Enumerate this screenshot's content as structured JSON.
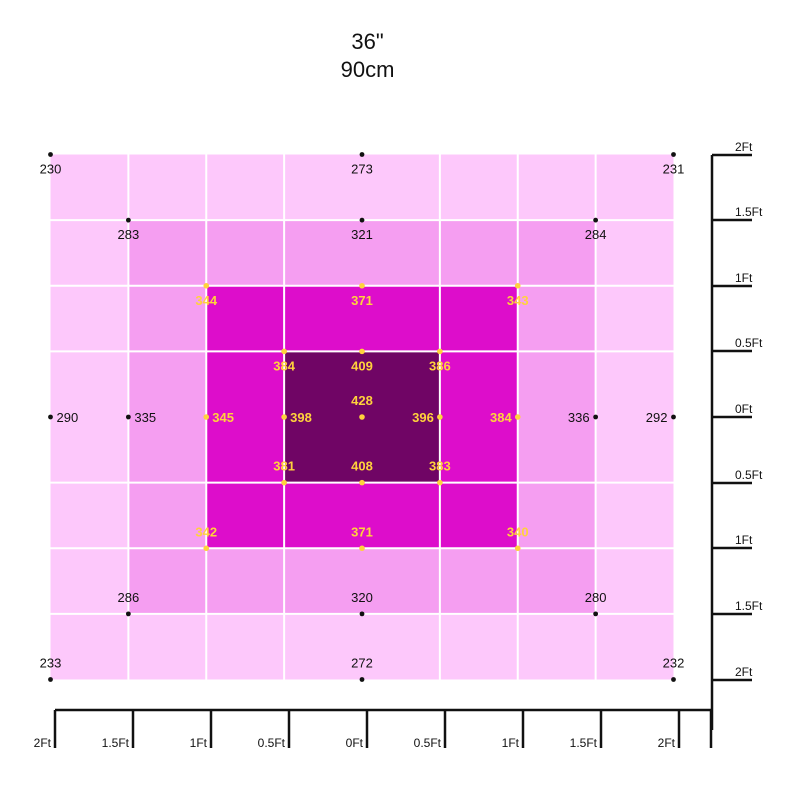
{
  "title": {
    "line1": "36\"",
    "line2": "90cm"
  },
  "chart_data": {
    "type": "heatmap",
    "title": "36\" 90cm",
    "x_ticks": [
      "2Ft",
      "1.5Ft",
      "1Ft",
      "0.5Ft",
      "0Ft",
      "0.5Ft",
      "1Ft",
      "1.5Ft",
      "2Ft"
    ],
    "y_ticks": [
      "2Ft",
      "1.5Ft",
      "1Ft",
      "0.5Ft",
      "0Ft",
      "0.5Ft",
      "1Ft",
      "1.5Ft",
      "2Ft"
    ],
    "xlim": [
      -2,
      2
    ],
    "ylim": [
      -2,
      2
    ],
    "zones": [
      {
        "name": "outer",
        "half_width_ft": 2,
        "half_height_ft": 2,
        "color": "#fdc8fb"
      },
      {
        "name": "ring-1.5",
        "half_width_ft": 1.5,
        "half_height_ft": 1.5,
        "color": "#f59ef1"
      },
      {
        "name": "ring-1",
        "half_width_ft": 1,
        "half_height_ft": 1,
        "color": "#dd0dcb"
      },
      {
        "name": "core",
        "half_width_ft": 0.5,
        "half_height_ft": 0.5,
        "color": "#700565"
      }
    ],
    "points": [
      {
        "x": -2,
        "y": 2,
        "value": 230,
        "style": "dark",
        "label_pos": "below"
      },
      {
        "x": 0,
        "y": 2,
        "value": 273,
        "style": "dark",
        "label_pos": "below"
      },
      {
        "x": 2,
        "y": 2,
        "value": 231,
        "style": "dark",
        "label_pos": "below"
      },
      {
        "x": -1.5,
        "y": 1.5,
        "value": 283,
        "style": "dark",
        "label_pos": "below"
      },
      {
        "x": 0,
        "y": 1.5,
        "value": 321,
        "style": "dark",
        "label_pos": "below"
      },
      {
        "x": 1.5,
        "y": 1.5,
        "value": 284,
        "style": "dark",
        "label_pos": "below"
      },
      {
        "x": -1,
        "y": 1,
        "value": 344,
        "style": "yellow",
        "label_pos": "below"
      },
      {
        "x": 0,
        "y": 1,
        "value": 371,
        "style": "yellow",
        "label_pos": "below"
      },
      {
        "x": 1,
        "y": 1,
        "value": 343,
        "style": "yellow",
        "label_pos": "below"
      },
      {
        "x": -0.5,
        "y": 0.5,
        "value": 384,
        "style": "yellow",
        "label_pos": "below"
      },
      {
        "x": 0,
        "y": 0.5,
        "value": 409,
        "style": "yellow",
        "label_pos": "below"
      },
      {
        "x": 0.5,
        "y": 0.5,
        "value": 386,
        "style": "yellow",
        "label_pos": "below"
      },
      {
        "x": 0,
        "y": 0,
        "value": 428,
        "style": "yellow",
        "label_pos": "above"
      },
      {
        "x": -2,
        "y": 0,
        "value": 290,
        "style": "dark",
        "label_pos": "right"
      },
      {
        "x": -1.5,
        "y": 0,
        "value": 335,
        "style": "dark",
        "label_pos": "right"
      },
      {
        "x": -1,
        "y": 0,
        "value": 345,
        "style": "yellow",
        "label_pos": "right"
      },
      {
        "x": -0.5,
        "y": 0,
        "value": 398,
        "style": "yellow",
        "label_pos": "right"
      },
      {
        "x": 0.5,
        "y": 0,
        "value": 396,
        "style": "yellow",
        "label_pos": "left"
      },
      {
        "x": 1,
        "y": 0,
        "value": 384,
        "style": "yellow",
        "label_pos": "left"
      },
      {
        "x": 1.5,
        "y": 0,
        "value": 336,
        "style": "dark",
        "label_pos": "left"
      },
      {
        "x": 2,
        "y": 0,
        "value": 292,
        "style": "dark",
        "label_pos": "left"
      },
      {
        "x": -0.5,
        "y": -0.5,
        "value": 381,
        "style": "yellow",
        "label_pos": "above"
      },
      {
        "x": 0,
        "y": -0.5,
        "value": 408,
        "style": "yellow",
        "label_pos": "above"
      },
      {
        "x": 0.5,
        "y": -0.5,
        "value": 383,
        "style": "yellow",
        "label_pos": "above"
      },
      {
        "x": -1,
        "y": -1,
        "value": 342,
        "style": "yellow",
        "label_pos": "above"
      },
      {
        "x": 0,
        "y": -1,
        "value": 371,
        "style": "yellow",
        "label_pos": "above"
      },
      {
        "x": 1,
        "y": -1,
        "value": 340,
        "style": "yellow",
        "label_pos": "above"
      },
      {
        "x": -1.5,
        "y": -1.5,
        "value": 286,
        "style": "dark",
        "label_pos": "above"
      },
      {
        "x": 0,
        "y": -1.5,
        "value": 320,
        "style": "dark",
        "label_pos": "above"
      },
      {
        "x": 1.5,
        "y": -1.5,
        "value": 280,
        "style": "dark",
        "label_pos": "above"
      },
      {
        "x": -2,
        "y": -2,
        "value": 233,
        "style": "dark",
        "label_pos": "above"
      },
      {
        "x": 0,
        "y": -2,
        "value": 272,
        "style": "dark",
        "label_pos": "above"
      },
      {
        "x": 2,
        "y": -2,
        "value": 232,
        "style": "dark",
        "label_pos": "above"
      }
    ],
    "colors": {
      "point_dark": "#111111",
      "point_yellow": "#ffd23c",
      "label_dark": "#111111",
      "label_yellow": "#ffd23c",
      "grid": "#ffffff",
      "axis": "#111111"
    }
  }
}
